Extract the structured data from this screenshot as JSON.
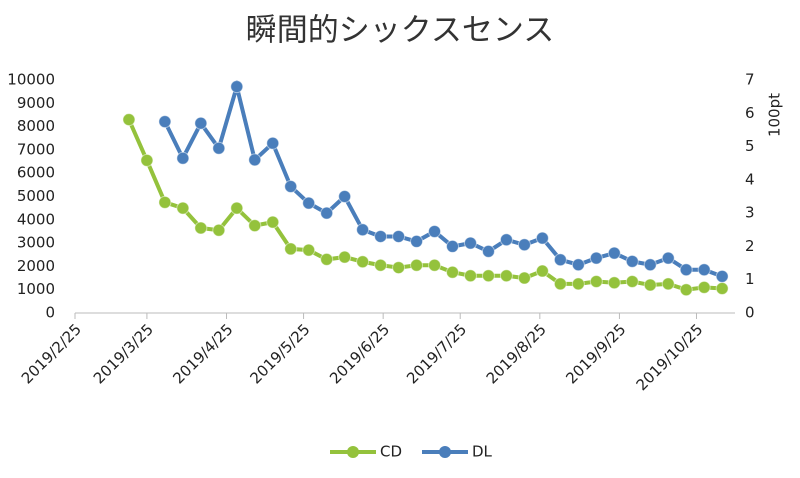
{
  "chart_data": {
    "type": "line",
    "title": "瞬間的シックスセンス",
    "x": [
      "2019/3/18",
      "2019/3/25",
      "2019/4/1",
      "2019/4/8",
      "2019/4/15",
      "2019/4/22",
      "2019/4/29",
      "2019/5/6",
      "2019/5/13",
      "2019/5/20",
      "2019/5/27",
      "2019/6/3",
      "2019/6/10",
      "2019/6/17",
      "2019/6/24",
      "2019/7/1",
      "2019/7/8",
      "2019/7/15",
      "2019/7/22",
      "2019/7/29",
      "2019/8/5",
      "2019/8/12",
      "2019/8/19",
      "2019/8/26",
      "2019/9/2",
      "2019/9/9",
      "2019/9/16",
      "2019/9/23",
      "2019/9/30",
      "2019/10/7",
      "2019/10/14",
      "2019/10/21",
      "2019/10/28",
      "2019/11/4"
    ],
    "series": [
      {
        "name": "CD",
        "color": "#94c23c",
        "values": [
          8300,
          6550,
          4750,
          4500,
          3650,
          3550,
          4500,
          3750,
          3900,
          2750,
          2700,
          2300,
          2400,
          2200,
          2050,
          1950,
          2050,
          2050,
          1750,
          1600,
          1600,
          1600,
          1500,
          1800,
          1250,
          1250,
          1350,
          1300,
          1350,
          1200,
          1250,
          1000,
          1100,
          1050
        ]
      },
      {
        "name": "DL",
        "color": "#4a7ebb",
        "axis": "y2",
        "values": [
          null,
          null,
          5.75,
          4.65,
          5.7,
          4.95,
          6.8,
          4.6,
          5.1,
          3.8,
          3.3,
          3.0,
          3.5,
          2.5,
          2.3,
          2.3,
          2.15,
          2.45,
          2.0,
          2.1,
          1.85,
          2.2,
          2.05,
          2.25,
          1.6,
          1.45,
          1.65,
          1.8,
          1.55,
          1.45,
          1.65,
          1.3,
          1.3,
          1.1
        ]
      }
    ],
    "xlim": [
      "2019/2/25",
      "2019/11/9"
    ],
    "xticks": [
      "2019/2/25",
      "2019/3/25",
      "2019/4/25",
      "2019/5/25",
      "2019/6/25",
      "2019/7/25",
      "2019/8/25",
      "2019/9/25",
      "2019/10/25"
    ],
    "ylim": [
      0,
      10000
    ],
    "yticks": [
      0,
      1000,
      2000,
      3000,
      4000,
      5000,
      6000,
      7000,
      8000,
      9000,
      10000
    ],
    "y2lim": [
      0,
      7
    ],
    "y2ticks": [
      0,
      1,
      2,
      3,
      4,
      5,
      6,
      7
    ],
    "y2label": "100pt",
    "grid": false,
    "legend": "bottom"
  }
}
